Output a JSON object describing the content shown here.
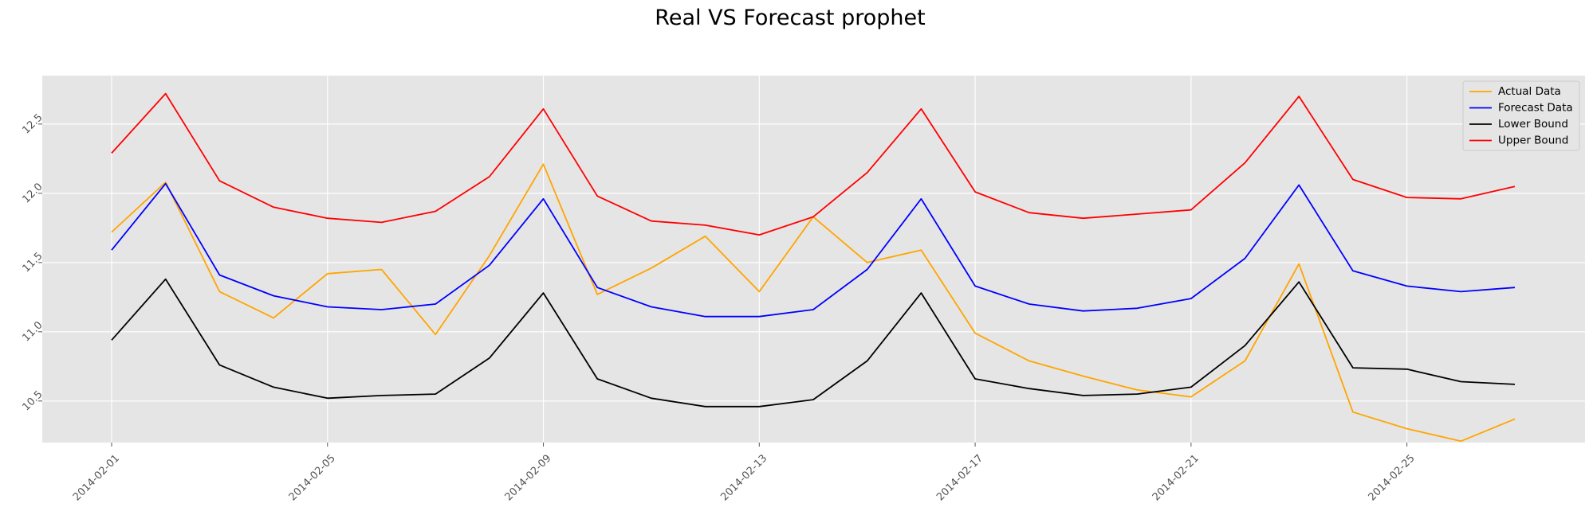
{
  "chart_data": {
    "type": "line",
    "title": "Real VS Forecast prophet",
    "xlabel": "",
    "ylabel": "",
    "x": [
      "2014-02-01",
      "2014-02-02",
      "2014-02-03",
      "2014-02-04",
      "2014-02-05",
      "2014-02-06",
      "2014-02-07",
      "2014-02-08",
      "2014-02-09",
      "2014-02-10",
      "2014-02-11",
      "2014-02-12",
      "2014-02-13",
      "2014-02-14",
      "2014-02-15",
      "2014-02-16",
      "2014-02-17",
      "2014-02-18",
      "2014-02-19",
      "2014-02-20",
      "2014-02-21",
      "2014-02-22",
      "2014-02-23",
      "2014-02-24",
      "2014-02-25",
      "2014-02-26",
      "2014-02-27"
    ],
    "xtick_labels": [
      "2014-02-01",
      "2014-02-05",
      "2014-02-09",
      "2014-02-13",
      "2014-02-17",
      "2014-02-21",
      "2014-02-25"
    ],
    "ytick_labels": [
      "10.5",
      "11.0",
      "11.5",
      "12.0",
      "12.5"
    ],
    "ylim": [
      10.2,
      12.85
    ],
    "grid": true,
    "legend_position": "top-right",
    "series": [
      {
        "name": "Actual Data",
        "color": "#ffa500",
        "values": [
          11.72,
          12.08,
          11.29,
          11.1,
          11.42,
          11.45,
          10.98,
          11.55,
          12.21,
          11.27,
          11.46,
          11.69,
          11.29,
          11.83,
          11.5,
          11.59,
          10.99,
          10.79,
          10.68,
          10.58,
          10.53,
          10.79,
          11.49,
          10.42,
          10.3,
          10.21,
          10.37
        ]
      },
      {
        "name": "Forecast Data",
        "color": "#0000ff",
        "values": [
          11.59,
          12.07,
          11.41,
          11.26,
          11.18,
          11.16,
          11.2,
          11.48,
          11.96,
          11.32,
          11.18,
          11.11,
          11.11,
          11.16,
          11.45,
          11.96,
          11.33,
          11.2,
          11.15,
          11.17,
          11.24,
          11.53,
          12.06,
          11.44,
          11.33,
          11.29,
          11.32
        ]
      },
      {
        "name": "Lower Bound",
        "color": "#000000",
        "values": [
          10.94,
          11.38,
          10.76,
          10.6,
          10.52,
          10.54,
          10.55,
          10.81,
          11.28,
          10.66,
          10.52,
          10.46,
          10.46,
          10.51,
          10.79,
          11.28,
          10.66,
          10.59,
          10.54,
          10.55,
          10.6,
          10.9,
          11.36,
          10.74,
          10.73,
          10.64,
          10.62
        ]
      },
      {
        "name": "Upper Bound",
        "color": "#ff0000",
        "values": [
          12.29,
          12.72,
          12.09,
          11.9,
          11.82,
          11.79,
          11.87,
          12.12,
          12.61,
          11.98,
          11.8,
          11.77,
          11.7,
          11.83,
          12.15,
          12.61,
          12.01,
          11.86,
          11.82,
          11.85,
          11.88,
          12.22,
          12.7,
          12.1,
          11.97,
          11.96,
          12.05
        ]
      }
    ]
  }
}
